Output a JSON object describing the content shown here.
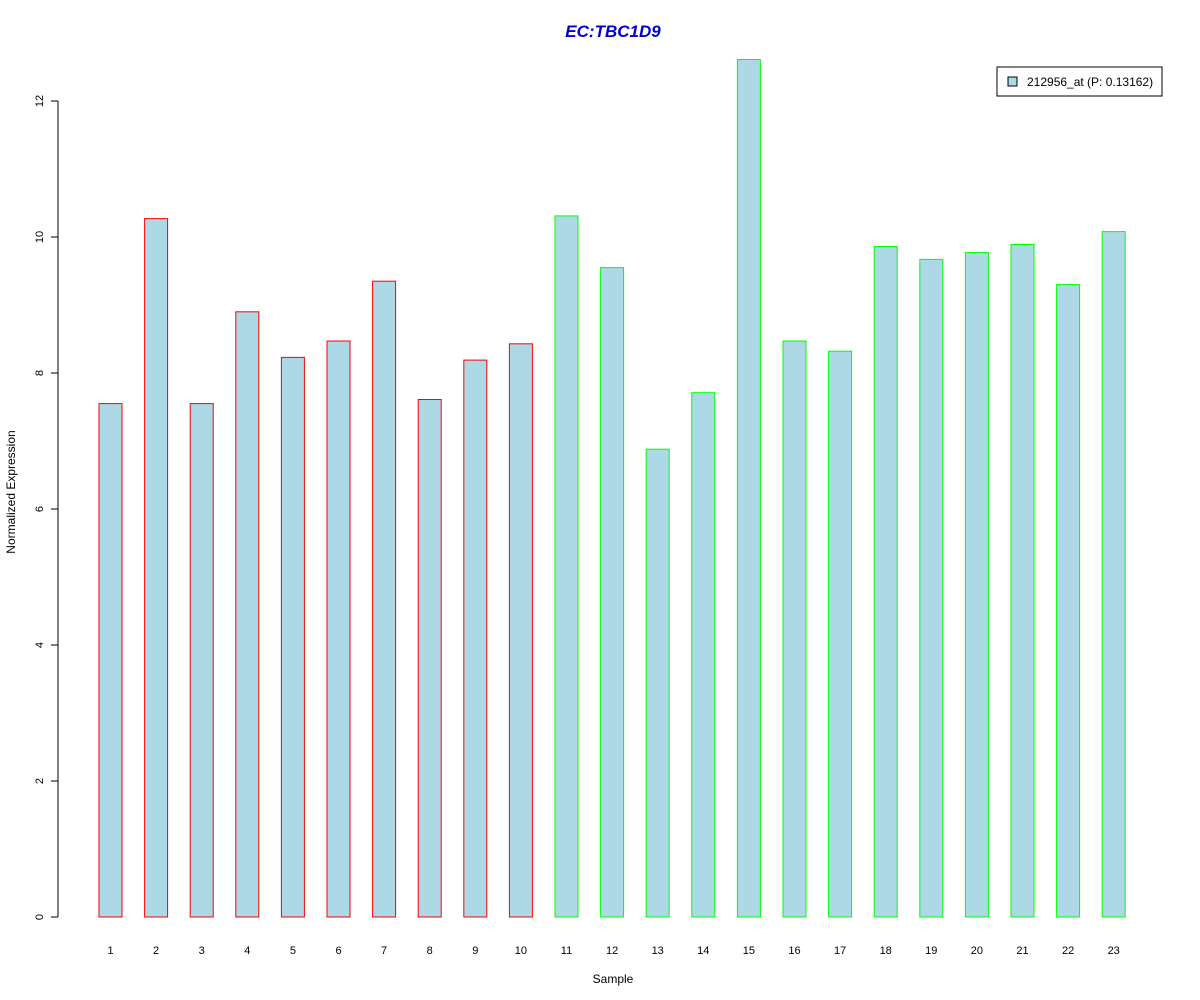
{
  "chart_data": {
    "type": "bar",
    "title": "EC:TBC1D9",
    "xlabel": "Sample",
    "ylabel": "Normalized Expression",
    "categories": [
      "1",
      "2",
      "3",
      "4",
      "5",
      "6",
      "7",
      "8",
      "9",
      "10",
      "11",
      "12",
      "13",
      "14",
      "15",
      "16",
      "17",
      "18",
      "19",
      "20",
      "21",
      "22",
      "23"
    ],
    "series": [
      {
        "name": "212956_at (P: 0.13162)",
        "values": [
          7.55,
          10.27,
          7.55,
          8.9,
          8.23,
          8.47,
          9.35,
          7.61,
          8.19,
          8.43,
          10.31,
          9.55,
          6.88,
          7.71,
          12.61,
          8.47,
          8.32,
          9.86,
          9.67,
          9.77,
          9.89,
          9.3,
          10.08
        ]
      }
    ],
    "group_sizes": [
      10,
      13
    ],
    "ylim": [
      0,
      12
    ],
    "y_ticks": [
      "0",
      "2",
      "4",
      "6",
      "8",
      "10",
      "12"
    ],
    "legend_position": "top-right",
    "grid": false,
    "colors": {
      "fill": "#add8e6",
      "group1_border": "#ff0000",
      "group2_border": "#00ff00",
      "title": "#0000cd",
      "axis": "#000000"
    }
  }
}
